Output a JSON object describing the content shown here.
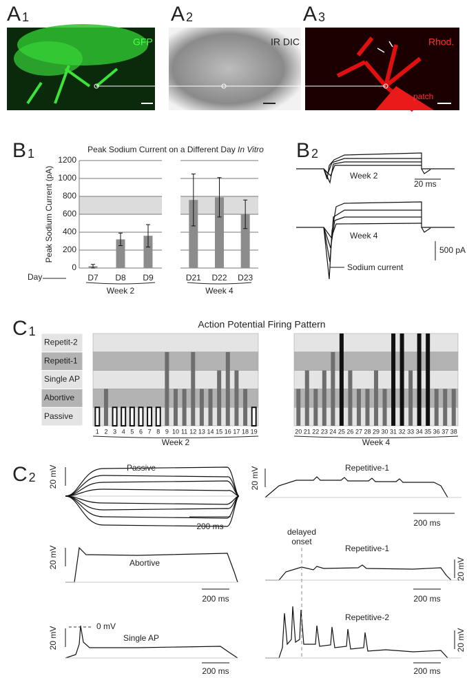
{
  "figure": {
    "panel_labels": [
      {
        "letter": "A",
        "index": "1"
      },
      {
        "letter": "A",
        "index": "2"
      },
      {
        "letter": "A",
        "index": "3"
      },
      {
        "letter": "B",
        "index": "1"
      },
      {
        "letter": "B",
        "index": "2"
      },
      {
        "letter": "C",
        "index": "1"
      },
      {
        "letter": "C",
        "index": "2"
      }
    ],
    "a_panels": {
      "gfp": "GFP",
      "ir_dic": "IR DIC",
      "rhod": "Rhod.",
      "patch": "patch"
    },
    "b2": {
      "week2": "Week 2",
      "time_scale": "20 ms",
      "week4": "Week 4",
      "current_scale": "500 pA",
      "sodium": "Sodium current"
    },
    "c2": {
      "passive": "Passive",
      "repetitive1_top": "Repetitive-1",
      "abortive": "Abortive",
      "delayed": "delayed",
      "onset": "onset",
      "repetitive1_mid": "Repetitive-1",
      "single_ap": "Single AP",
      "zero_mv": "0 mV",
      "repetitive2": "Repetitive-2",
      "mv_scales": [
        "20 mV",
        "20 mV",
        "20 mV",
        "20 mV",
        "20 mV",
        "20 mV"
      ],
      "ms_scales": [
        "200 ms",
        "200 ms",
        "200 ms",
        "200 ms",
        "200 ms",
        "200 ms"
      ]
    }
  },
  "chart_data": [
    {
      "type": "bar",
      "title": "Peak Sodium Current on a Different Day ",
      "title_italic": "In Vitro",
      "y_label": "Peak Sodium Current (pA)",
      "x_label": "Day",
      "color": "#8c8c8c",
      "band": [
        600,
        800
      ],
      "band_color": "#dcdcdc",
      "groups": [
        {
          "name": "Week 2",
          "categories": [
            "D7",
            "D8",
            "D9"
          ],
          "values": [
            20,
            320,
            360
          ],
          "errors": [
            20,
            70,
            125
          ]
        },
        {
          "name": "Week 4",
          "categories": [
            "D21",
            "D22",
            "D23"
          ],
          "values": [
            760,
            790,
            600
          ],
          "errors": [
            290,
            220,
            160
          ]
        }
      ],
      "ylim": [
        0,
        1200
      ],
      "yticks": [
        0,
        200,
        400,
        600,
        800,
        1000,
        1200
      ],
      "grid": true
    },
    {
      "type": "level",
      "title": "Action Potential Firing Pattern",
      "groups": [
        {
          "name": "Week 2",
          "categories": [
            "1",
            "2",
            "3",
            "4",
            "5",
            "6",
            "7",
            "8",
            "9",
            "10",
            "11",
            "12",
            "13",
            "14",
            "15",
            "16",
            "17",
            "18",
            "19"
          ],
          "values": [
            1,
            2,
            1,
            1,
            1,
            1,
            1,
            1,
            4,
            2,
            2,
            4,
            2,
            2,
            3,
            4,
            3,
            2,
            1
          ]
        },
        {
          "name": "Week 4",
          "categories": [
            "20",
            "21",
            "22",
            "23",
            "24",
            "25",
            "26",
            "27",
            "28",
            "29",
            "30",
            "31",
            "32",
            "33",
            "34",
            "35",
            "36",
            "37",
            "38"
          ],
          "values": [
            2,
            3,
            2,
            3,
            4,
            5,
            3,
            2,
            2,
            3,
            2,
            5,
            5,
            3,
            5,
            5,
            2,
            2,
            2
          ]
        }
      ],
      "ylim": [
        0,
        5
      ],
      "yticks": [
        {
          "value": 1,
          "label": "Passive"
        },
        {
          "value": 2,
          "label": "Abortive"
        },
        {
          "value": 3,
          "label": "Single AP"
        },
        {
          "value": 4,
          "label": "Repetit-1"
        },
        {
          "value": 5,
          "label": "Repetit-2"
        }
      ],
      "band_colors": [
        "#e4e4e4",
        "#b3b3b3",
        "#e4e4e4",
        "#b3b3b3",
        "#e4e4e4"
      ],
      "level_colors": [
        "#ffffff",
        "#6e6e6e",
        "#6e6e6e",
        "#6e6e6e",
        "#111111"
      ]
    }
  ]
}
